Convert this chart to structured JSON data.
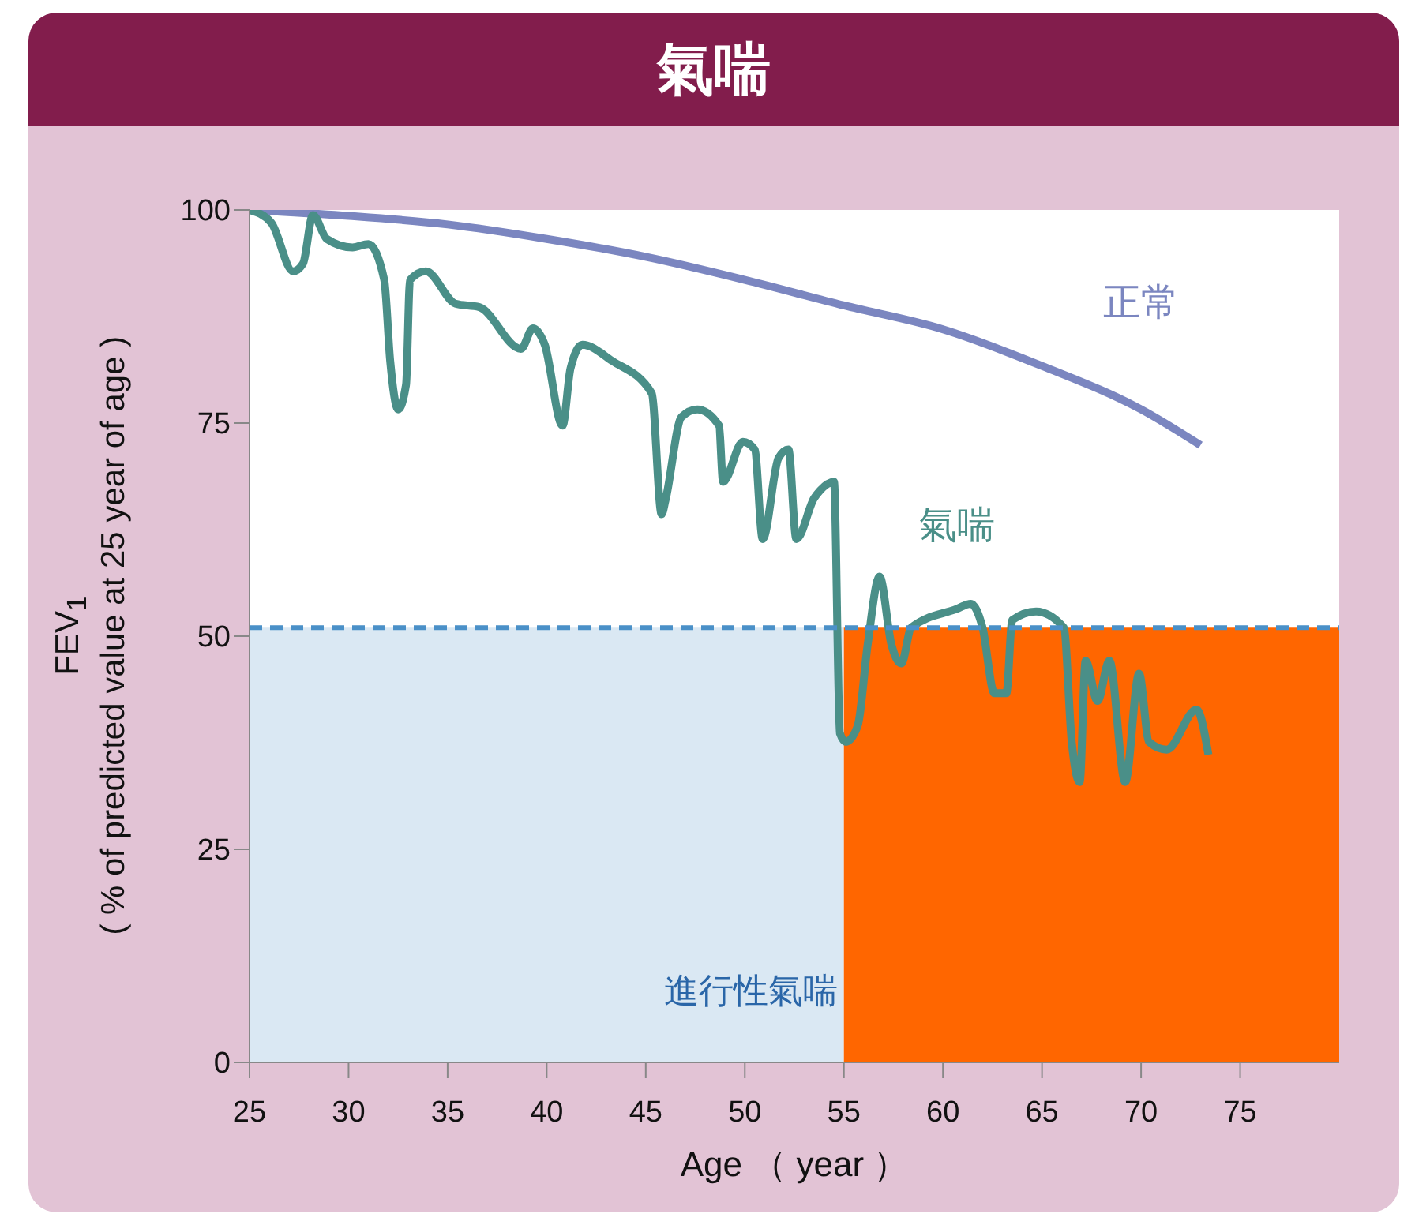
{
  "chart_data": {
    "type": "line",
    "title": "氣喘",
    "xlabel": "Age （ year ）",
    "ylabel": "FEV$_{1}$\n( % of predicted value at 25 year of age )",
    "xlim": [
      25,
      80
    ],
    "xticks": [
      25,
      30,
      35,
      40,
      45,
      50,
      55,
      60,
      65,
      70,
      75
    ],
    "ylim": [
      0,
      100
    ],
    "yticks": [
      0,
      25,
      50,
      75,
      100
    ],
    "series": [
      {
        "type": "area",
        "color": "#dae8f3",
        "x": [
          25,
          55
        ],
        "values": [
          51,
          51
        ]
      },
      {
        "type": "area",
        "color": "#ff6600",
        "x": [
          55,
          80
        ],
        "values": [
          51,
          51
        ]
      },
      {
        "name": "正常",
        "color": "#7b86c0",
        "x": [
          25,
          30,
          35,
          40,
          45,
          50,
          55,
          60,
          65,
          70,
          73
        ],
        "values": [
          100,
          99.3,
          98.3,
          96.6,
          94.5,
          91.8,
          88.8,
          86,
          81.7,
          76.6,
          72.4
        ]
      },
      {
        "name": "氣喘",
        "color": "#4a8f88",
        "x": [
          25,
          26.1,
          27.2,
          27.7,
          28.2,
          28.9,
          30.2,
          31,
          31.8,
          32.1,
          32.5,
          32.9,
          33.1,
          33.9,
          35.4,
          36.6,
          38.7,
          39.3,
          39.9,
          40.8,
          41.2,
          41.8,
          43.3,
          45.3,
          45.8,
          46,
          46.8,
          47.6,
          48.7,
          48.9,
          49.9,
          50.5,
          50.9,
          51.7,
          52.2,
          52.6,
          53.5,
          53.8,
          54.5,
          54.8,
          55.1,
          55.7,
          56.2,
          56.8,
          57.4,
          57.9,
          58.4,
          60.7,
          61.4,
          62,
          62.6,
          63.2,
          63.5,
          64.7,
          66.1,
          66.5,
          66.9,
          67.2,
          67.8,
          68.4,
          69.2,
          69.9,
          70.4,
          71.3,
          72.8,
          73.4
        ],
        "values": [
          100,
          98.5,
          92.8,
          93.7,
          99.4,
          96.6,
          95.6,
          96,
          91.8,
          82.3,
          76.6,
          79.5,
          91.8,
          92.8,
          89,
          88.6,
          83.7,
          86.1,
          84.2,
          74.7,
          81.4,
          84.2,
          82.3,
          78.5,
          64.3,
          66,
          75.7,
          76.6,
          74.7,
          68.1,
          72.8,
          71.9,
          61.4,
          70.9,
          71.9,
          61.4,
          66.2,
          67.1,
          68.1,
          38.6,
          37.6,
          39.5,
          49,
          57,
          49,
          46.8,
          51,
          53.2,
          53.8,
          51,
          43.3,
          43.3,
          51.9,
          52.9,
          51,
          37.6,
          32.9,
          47.1,
          42.4,
          47.1,
          32.9,
          45.6,
          37.6,
          36.7,
          41.4,
          36.1
        ]
      }
    ],
    "ref_lines": [
      {
        "axis": "y",
        "value": 51,
        "color": "#4a90c8",
        "line_style": "dashed"
      }
    ],
    "annotations": [
      "進行性氣喘"
    ],
    "grid": false,
    "marker": "none"
  }
}
